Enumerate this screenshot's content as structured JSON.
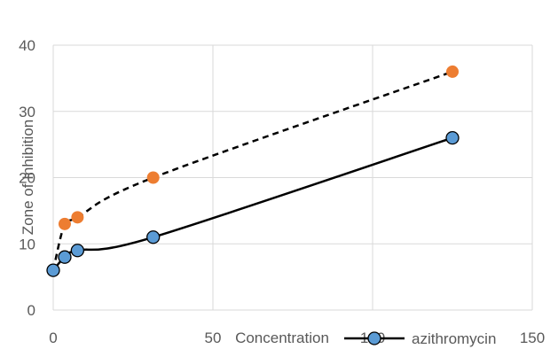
{
  "chart_data": {
    "type": "line",
    "title": "",
    "xlabel": "Concentration",
    "ylabel": "Zone of Inhibition",
    "xlim": [
      0,
      150
    ],
    "ylim": [
      0,
      40
    ],
    "xticks": [
      0,
      50,
      100,
      150
    ],
    "yticks": [
      0,
      10,
      20,
      30,
      40
    ],
    "grid": true,
    "legend_position": "bottom-right",
    "series": [
      {
        "name": "",
        "style": "dashed",
        "line_color": "#000000",
        "marker_fill": "#ED7D31",
        "marker_stroke": "#ED7D31",
        "points": [
          [
            0,
            6
          ],
          [
            3.6,
            13
          ],
          [
            7.6,
            14
          ],
          [
            31.3,
            20
          ],
          [
            125,
            36
          ]
        ]
      },
      {
        "name": "azithromycin",
        "style": "solid",
        "line_color": "#000000",
        "marker_fill": "#5B9BD5",
        "marker_stroke": "#000000",
        "points": [
          [
            0,
            6
          ],
          [
            3.6,
            8
          ],
          [
            7.6,
            9
          ],
          [
            31.3,
            11
          ],
          [
            125,
            26
          ]
        ]
      }
    ]
  }
}
